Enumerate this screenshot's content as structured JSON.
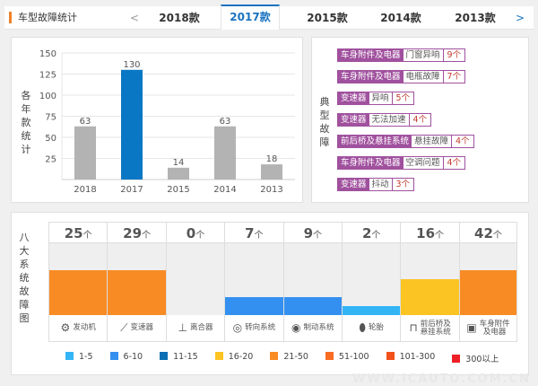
{
  "header": {
    "title": "车型故障统计",
    "prev": "<",
    "next": ">",
    "tabs": [
      "2018款",
      "2017款",
      "2015款",
      "2014款",
      "2013款"
    ],
    "active": 1
  },
  "yearly": {
    "ylabel": "各年款统计"
  },
  "chart_data": {
    "type": "bar",
    "categories": [
      "2018",
      "2017",
      "2015",
      "2014",
      "2013"
    ],
    "values": [
      63,
      130,
      14,
      63,
      18
    ],
    "ylim": [
      0,
      150
    ],
    "yticks": [
      25,
      50,
      75,
      100,
      125,
      150
    ],
    "highlight": "2017",
    "colors": {
      "default": "#b3b3b3",
      "highlight": "#0a77c4"
    },
    "grid": true
  },
  "typical": {
    "label": "典型故障",
    "items": [
      {
        "cat": "车身附件及电器",
        "name": "门窗异响",
        "count": "9个"
      },
      {
        "cat": "车身附件及电器",
        "name": "电瓶故障",
        "count": "7个"
      },
      {
        "cat": "变速器",
        "name": "异响",
        "count": "5个"
      },
      {
        "cat": "变速器",
        "name": "无法加速",
        "count": "4个"
      },
      {
        "cat": "前后桥及悬挂系统",
        "name": "悬挂故障",
        "count": "4个"
      },
      {
        "cat": "车身附件及电器",
        "name": "空调问题",
        "count": "4个"
      },
      {
        "cat": "变速器",
        "name": "抖动",
        "count": "3个"
      }
    ]
  },
  "systems": {
    "label": "八大系统故障图",
    "unit": "个",
    "items": [
      {
        "name": "发动机",
        "count": "25",
        "level": 5,
        "icon": "engine-icon"
      },
      {
        "name": "变速器",
        "count": "29",
        "level": 5,
        "icon": "gear-shift-icon"
      },
      {
        "name": "离合器",
        "count": "0",
        "level": 0,
        "icon": "clutch-pedal-icon"
      },
      {
        "name": "转向系统",
        "count": "7",
        "level": 2,
        "icon": "steering-wheel-icon"
      },
      {
        "name": "制动系统",
        "count": "9",
        "level": 2,
        "icon": "brake-disc-icon"
      },
      {
        "name": "轮胎",
        "count": "2",
        "level": 1,
        "icon": "tire-icon"
      },
      {
        "name": "前后桥及悬挂系统",
        "count": "16",
        "level": 4,
        "icon": "axle-icon"
      },
      {
        "name": "车身附件及电器",
        "count": "42",
        "level": 5,
        "icon": "battery-icon"
      }
    ]
  },
  "legend": [
    {
      "label": "1-5",
      "color": "#33b5f5"
    },
    {
      "label": "6-10",
      "color": "#3390f0"
    },
    {
      "label": "11-15",
      "color": "#0a6fb5"
    },
    {
      "label": "16-20",
      "color": "#fbc423"
    },
    {
      "label": "21-50",
      "color": "#f98b25"
    },
    {
      "label": "51-100",
      "color": "#f76c22"
    },
    {
      "label": "101-300",
      "color": "#f2511b"
    },
    {
      "label": "300以上",
      "color": "#ec2026"
    }
  ],
  "watermark": "WWW.ICAUTO.COM.CN"
}
